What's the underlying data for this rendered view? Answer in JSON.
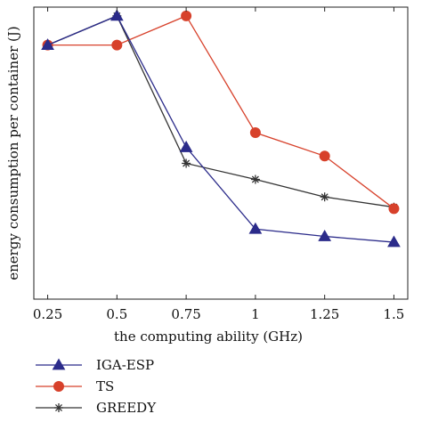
{
  "chart_data": {
    "type": "line",
    "xlabel": "the computing ability (GHz)",
    "ylabel": "energy consumption per container (J)",
    "x": [
      0.25,
      0.5,
      0.75,
      1,
      1.25,
      1.5
    ],
    "x_tick_labels": [
      "0.25",
      "0.5",
      "0.75",
      "1",
      "1.25",
      "1.5"
    ],
    "xlim": [
      0.2,
      1.55
    ],
    "ylim": [
      0,
      100
    ],
    "y_ticks_shown": false,
    "grid": false,
    "legend_position": "bottom-left-outside",
    "series": [
      {
        "name": "IGA-ESP",
        "values": [
          87,
          97,
          52,
          24,
          21.5,
          19.5
        ],
        "color": "#2b2b8a",
        "marker": "triangle"
      },
      {
        "name": "TS",
        "values": [
          87,
          87,
          97,
          57,
          49,
          31
        ],
        "color": "#d7412b",
        "marker": "circle"
      },
      {
        "name": "GREEDY",
        "values": [
          87,
          97,
          46.5,
          41,
          35,
          31.5
        ],
        "color": "#333333",
        "marker": "star"
      }
    ]
  }
}
